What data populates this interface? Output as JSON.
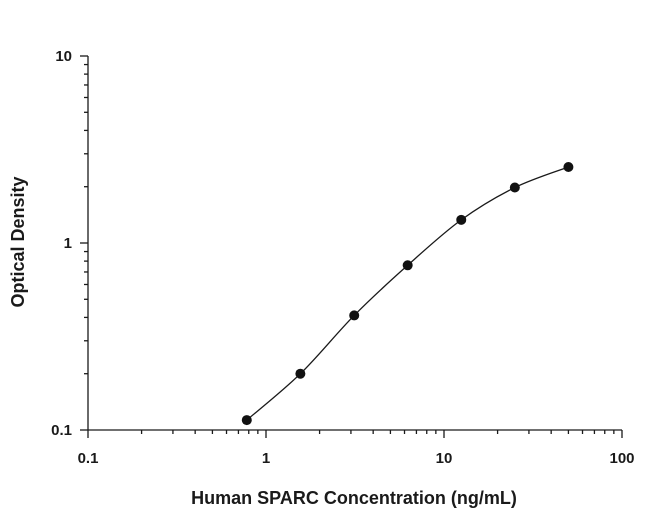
{
  "chart_data": {
    "type": "scatter",
    "x_scale": "log",
    "y_scale": "log",
    "xlim": [
      0.1,
      100
    ],
    "ylim": [
      0.1,
      10
    ],
    "xlabel": "Human SPARC Concentration (ng/mL)",
    "ylabel": "Optical Density",
    "x_ticks": [
      "0.1",
      "1",
      "10",
      "100"
    ],
    "y_ticks": [
      "0.1",
      "1",
      "10"
    ],
    "grid": false,
    "series": [
      {
        "x": [
          0.78,
          1.56,
          3.13,
          6.25,
          12.5,
          25,
          50
        ],
        "y": [
          0.113,
          0.2,
          0.41,
          0.76,
          1.33,
          1.98,
          2.55
        ],
        "fit_curve": true
      }
    ],
    "colors": {
      "marker": "#111111",
      "axis": "#1a1a1a"
    }
  }
}
